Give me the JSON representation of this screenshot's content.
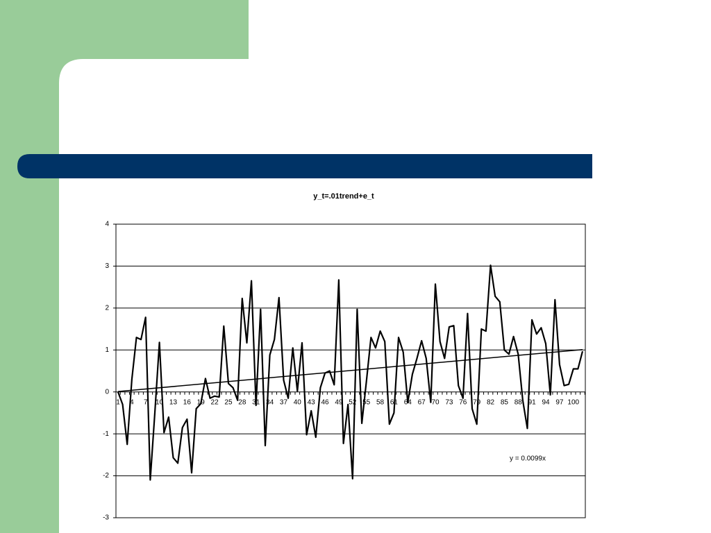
{
  "chart_data": {
    "type": "line",
    "title": "y_t=.01trend+e_t",
    "categories": [
      1,
      null,
      null,
      4,
      null,
      null,
      7,
      null,
      null,
      10,
      null,
      null,
      13,
      null,
      null,
      16,
      null,
      null,
      19,
      null,
      null,
      22,
      null,
      null,
      25,
      null,
      null,
      28,
      null,
      null,
      31,
      null,
      null,
      34,
      null,
      null,
      37,
      null,
      null,
      40,
      null,
      null,
      43,
      null,
      null,
      46,
      null,
      null,
      49,
      null,
      null,
      52,
      null,
      null,
      55,
      null,
      null,
      58,
      null,
      null,
      61,
      null,
      null,
      64,
      null,
      null,
      67,
      null,
      null,
      70,
      null,
      null,
      73,
      null,
      null,
      76,
      null,
      null,
      79,
      null,
      null,
      82,
      null,
      null,
      85,
      null,
      null,
      88,
      null,
      null,
      91,
      null,
      null,
      94,
      null,
      null,
      97,
      null,
      null,
      100,
      null,
      null
    ],
    "values": [
      0,
      -0.3,
      -1.25,
      0.3,
      1.3,
      1.25,
      1.78,
      -2.1,
      -0.5,
      1.18,
      -0.97,
      -0.6,
      -1.57,
      -1.7,
      -0.85,
      -0.65,
      -1.93,
      -0.4,
      -0.28,
      0.32,
      -0.15,
      -0.1,
      -0.12,
      1.57,
      0.2,
      0.1,
      -0.2,
      2.23,
      1.17,
      2.65,
      -0.32,
      1.97,
      -1.28,
      0.88,
      1.25,
      2.25,
      0.28,
      -0.15,
      1.05,
      0.02,
      1.17,
      -1.02,
      -0.45,
      -1.08,
      0.1,
      0.45,
      0.5,
      0.17,
      2.67,
      -1.23,
      -0.3,
      -2.07,
      1.97,
      -0.75,
      0.25,
      1.3,
      1.05,
      1.45,
      1.2,
      -0.77,
      -0.5,
      1.3,
      0.95,
      -0.25,
      0.42,
      0.8,
      1.22,
      0.8,
      -0.25,
      2.57,
      1.2,
      0.8,
      1.55,
      1.58,
      0.15,
      -0.15,
      1.87,
      -0.4,
      -0.77,
      1.5,
      1.45,
      3.02,
      2.28,
      2.15,
      1.0,
      0.9,
      1.32,
      0.9,
      -0.2,
      -0.87,
      1.72,
      1.38,
      1.53,
      1.15,
      -0.07,
      2.2,
      0.65,
      0.15,
      0.18,
      0.55,
      0.55,
      0.97
    ],
    "color": "#000000",
    "ylim": [
      -3,
      4
    ],
    "yticks": [
      -3,
      -2,
      -1,
      0,
      1,
      2,
      3,
      4
    ],
    "grid": true,
    "trendline": {
      "slope": 0.0099,
      "label": "y = 0.0099x",
      "color": "#000000"
    }
  }
}
